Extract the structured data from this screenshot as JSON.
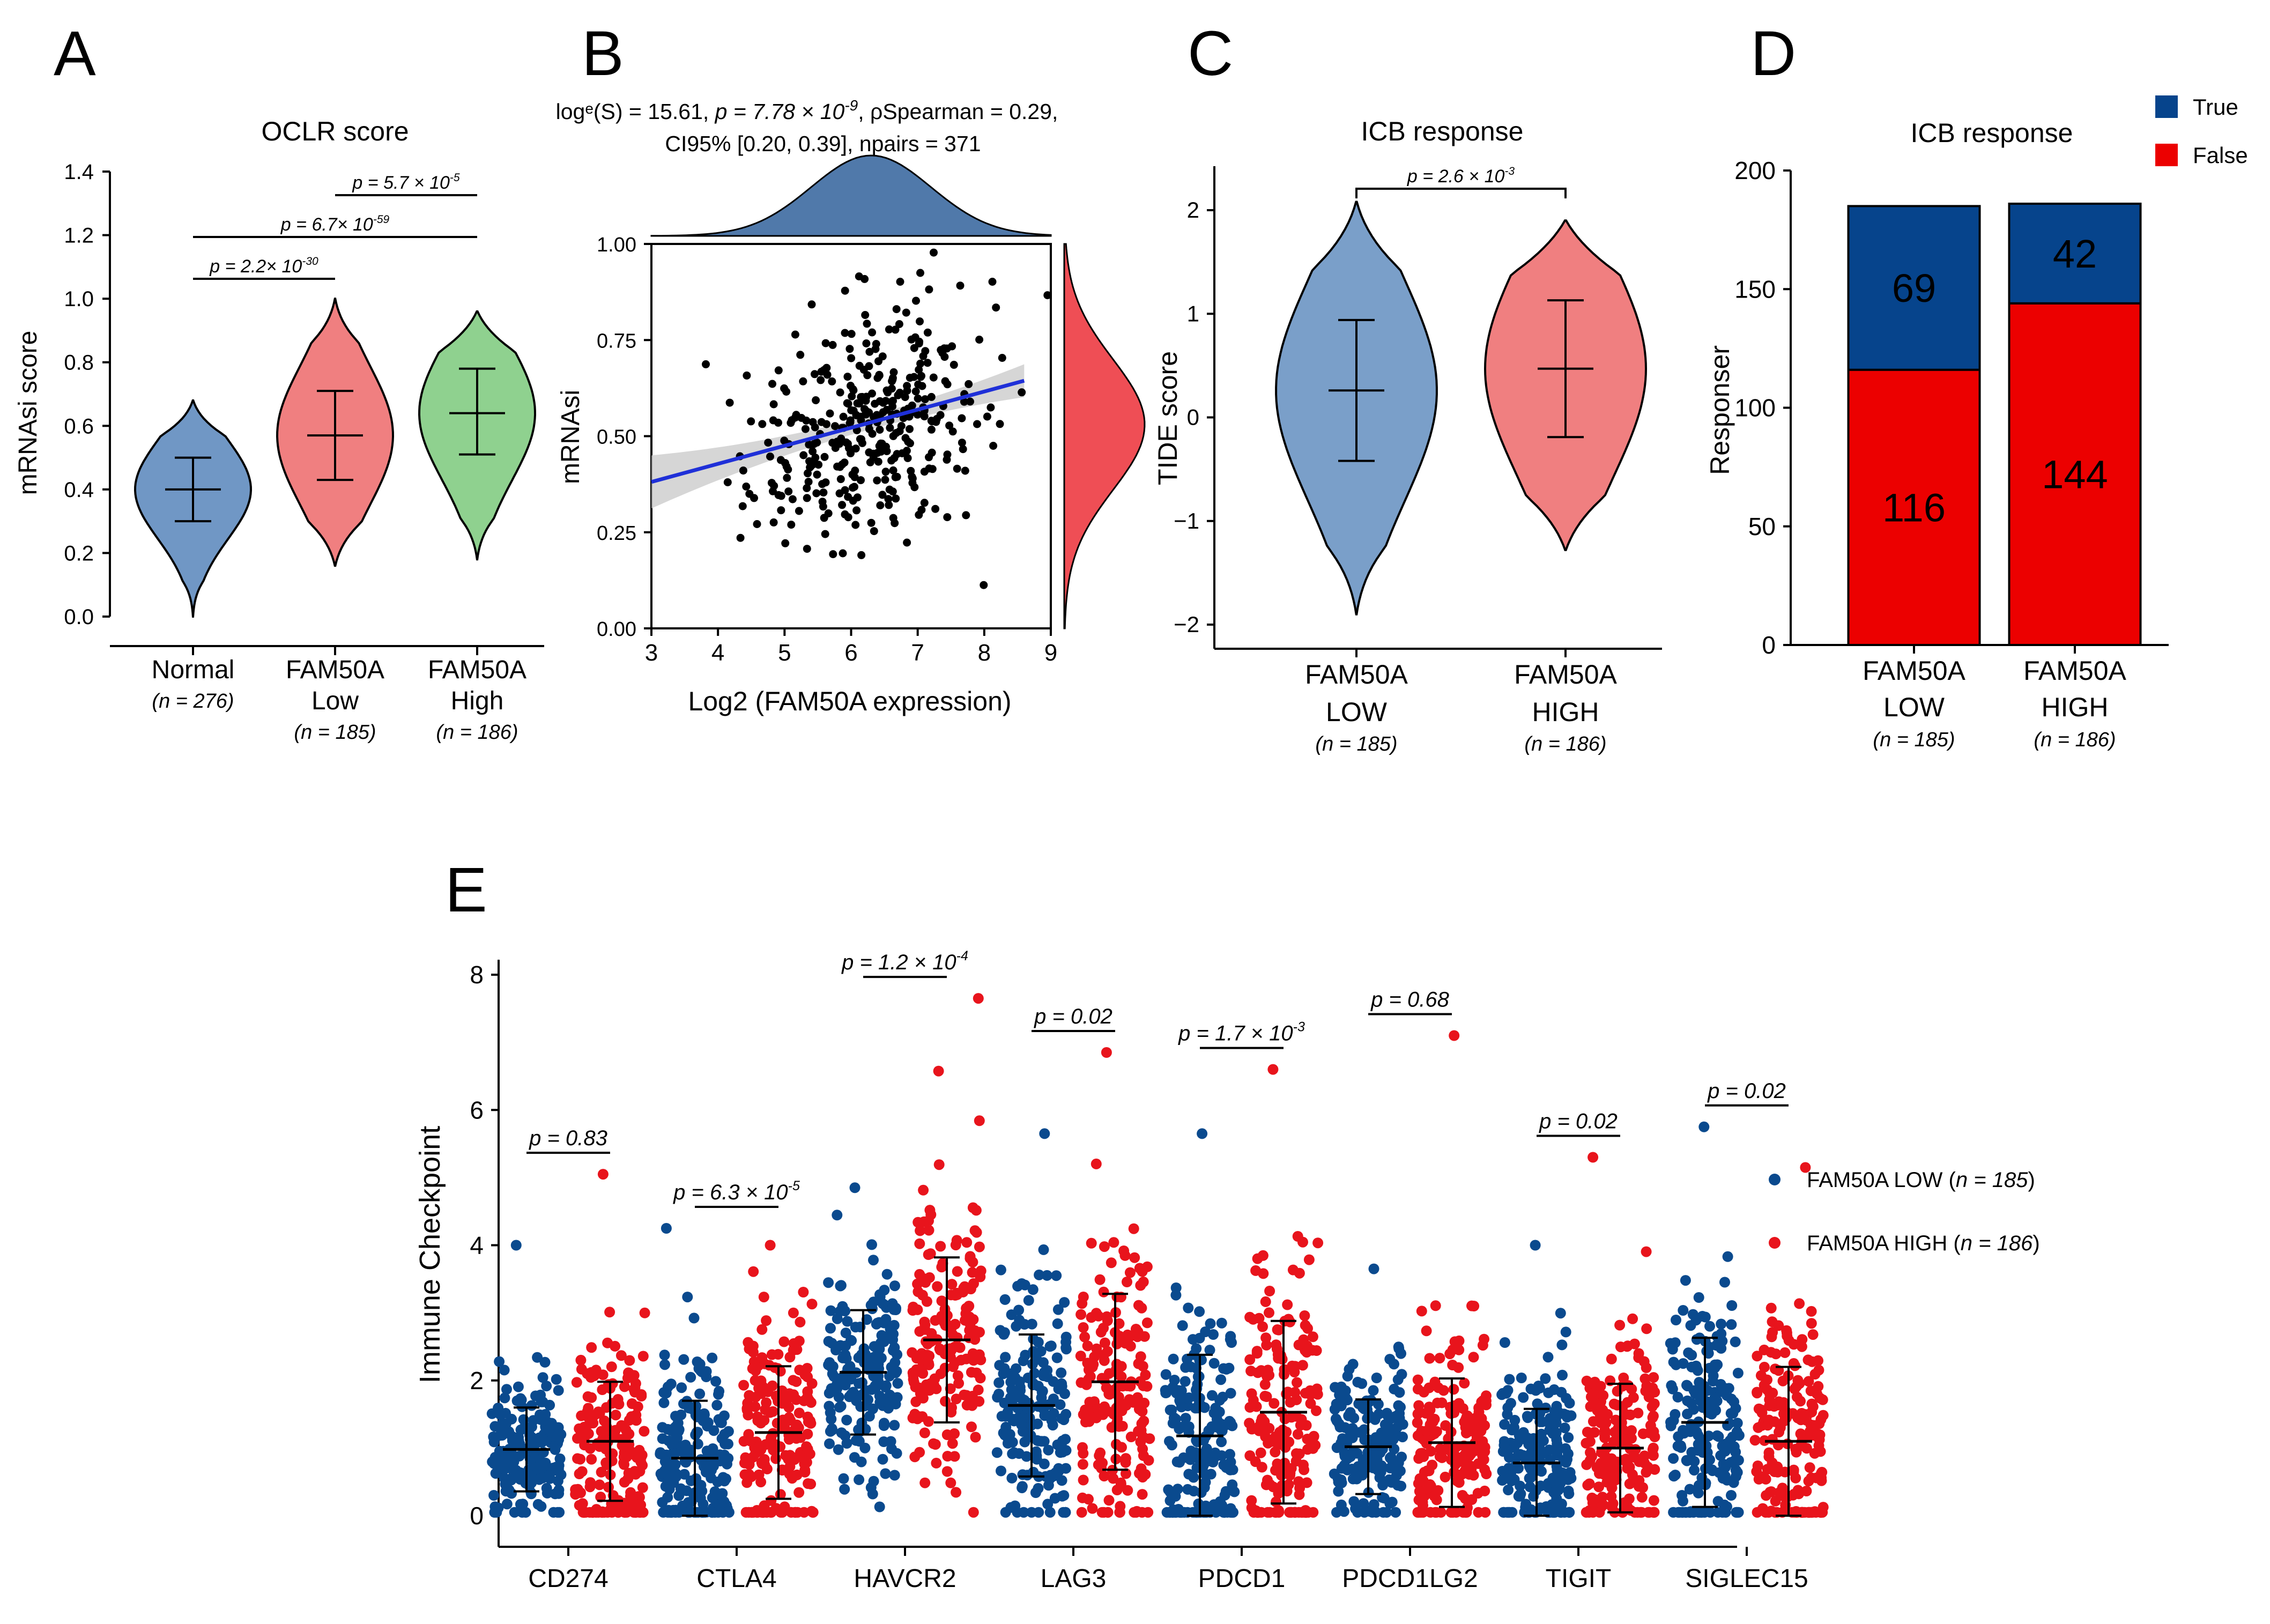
{
  "colors": {
    "normal": "#7097c5",
    "low_violin": "#7a9fc9",
    "high_violin": "#f07f80",
    "normal_green": "#8fd18f",
    "bar_true": "#06448c",
    "bar_false": "#ec0000",
    "scatter_point": "#000000",
    "fit_line": "#1f30d8",
    "band": "#c8c8c8",
    "density_top": "#5079aa",
    "density_right": "#ef4e55",
    "dot_low": "#0a4a8e",
    "dot_high": "#e8141c"
  },
  "chart_data": [
    {
      "panel": "A",
      "type": "violin",
      "title": "OCLR score",
      "ylabel": "mRNAsi score",
      "ylim": [
        0,
        1.4
      ],
      "yticks": [
        "0.0",
        "0.2",
        "0.4",
        "0.6",
        "0.8",
        "1.0",
        "1.2",
        "1.4"
      ],
      "groups": [
        {
          "label_lines": [
            "Normal"
          ],
          "n": "(n = 276)",
          "median": 0.4,
          "q1": 0.3,
          "q3": 0.5,
          "min": 0.0,
          "max": 0.68
        },
        {
          "label_lines": [
            "FAM50A",
            "Low"
          ],
          "n": "(n = 185)",
          "median": 0.57,
          "q1": 0.43,
          "q3": 0.71,
          "min": 0.16,
          "max": 1.0
        },
        {
          "label_lines": [
            "FAM50A",
            "High"
          ],
          "n": "(n = 186)",
          "median": 0.64,
          "q1": 0.51,
          "q3": 0.78,
          "min": 0.18,
          "max": 0.96
        }
      ],
      "comparisons": [
        {
          "label": "p = 2.2× 10",
          "exp": "-30"
        },
        {
          "label": "p = 6.7× 10",
          "exp": "-59"
        },
        {
          "label": "p = 5.7 × 10",
          "exp": "-5"
        }
      ]
    },
    {
      "panel": "B",
      "type": "scatter",
      "subtitle_line1_a": "log",
      "subtitle_line1_b": "e",
      "subtitle_line1_c": "(S) = 15.61, ",
      "subtitle_line1_p": "p = 7.78 × 10",
      "subtitle_line1_exp": "-9",
      "subtitle_line1_rho": ", ρSpearman = 0.29,",
      "subtitle_line2": "CI95% [0.20, 0.39], npairs = 371",
      "xlabel": "Log2 (FAM50A expression)",
      "ylabel": "mRNAsi",
      "xlim": [
        3,
        9
      ],
      "ylim": [
        0,
        1
      ],
      "xticks": [
        "3",
        "4",
        "5",
        "6",
        "7",
        "8",
        "9"
      ],
      "yticks": [
        "0.00",
        "0.25",
        "0.50",
        "0.75",
        "1.00"
      ],
      "fit": {
        "intercept": 0.24,
        "slope": 0.047
      },
      "x_mean": 6.3,
      "x_sd": 0.9,
      "y_mean": 0.53,
      "y_sd": 0.17,
      "n_points": 371
    },
    {
      "panel": "C",
      "type": "violin",
      "title": "ICB response",
      "ylabel": "TIDE score",
      "ylim": [
        -2,
        2
      ],
      "yticks": [
        "−2",
        "−1",
        "0",
        "1",
        "2"
      ],
      "groups": [
        {
          "label_lines": [
            "FAM50A",
            "LOW"
          ],
          "n": "(n = 185)",
          "median": 0.26,
          "q1": -0.42,
          "q3": 0.94,
          "min": -1.9,
          "max": 2.08
        },
        {
          "label_lines": [
            "FAM50A",
            "HIGH"
          ],
          "n": "(n = 186)",
          "median": 0.47,
          "q1": -0.19,
          "q3": 1.13,
          "min": -1.28,
          "max": 1.9
        }
      ],
      "comparison": {
        "label": "p = 2.6 × 10",
        "exp": "-3"
      }
    },
    {
      "panel": "D",
      "type": "bar",
      "stacked": true,
      "title": "ICB response",
      "ylabel": "Responser",
      "ylim": [
        0,
        200
      ],
      "yticks": [
        "0",
        "50",
        "100",
        "150",
        "200"
      ],
      "categories": [
        [
          "FAM50A",
          "LOW"
        ],
        [
          "FAM50A",
          "HIGH"
        ]
      ],
      "n_labels": [
        "(n = 185)",
        "(n = 186)"
      ],
      "series": [
        {
          "name": "False",
          "values": [
            116,
            144
          ]
        },
        {
          "name": "True",
          "values": [
            69,
            42
          ]
        }
      ],
      "legend": [
        "True",
        "False"
      ]
    },
    {
      "panel": "E",
      "type": "scatter",
      "ylabel": "Immune Checkpoint",
      "ylim": [
        0,
        8
      ],
      "yticks": [
        "0",
        "2",
        "4",
        "6",
        "8"
      ],
      "genes": [
        {
          "name": "CD274",
          "p": "p = 0.83",
          "exp": "",
          "low": {
            "mean": 0.98,
            "sd": 0.62,
            "max": 4.0
          },
          "high": {
            "mean": 1.1,
            "sd": 0.88,
            "max": 5.05
          }
        },
        {
          "name": "CTLA4",
          "p": "p = 6.3 × 10",
          "exp": "-5",
          "low": {
            "mean": 0.85,
            "sd": 0.85,
            "max": 4.25
          },
          "high": {
            "mean": 1.23,
            "sd": 0.98,
            "max": 4.0
          }
        },
        {
          "name": "HAVCR2",
          "p": "p = 1.2 × 10",
          "exp": "-4",
          "low": {
            "mean": 2.12,
            "sd": 0.92,
            "max": 4.85
          },
          "high": {
            "mean": 2.6,
            "sd": 1.22,
            "max": 7.65
          }
        },
        {
          "name": "LAG3",
          "p": "p = 0.02",
          "exp": "",
          "low": {
            "mean": 1.63,
            "sd": 1.05,
            "max": 5.65
          },
          "high": {
            "mean": 1.98,
            "sd": 1.3,
            "max": 6.85
          }
        },
        {
          "name": "PDCD1",
          "p": "p = 1.7 × 10",
          "exp": "-3",
          "low": {
            "mean": 1.18,
            "sd": 1.2,
            "max": 5.65
          },
          "high": {
            "mean": 1.53,
            "sd": 1.35,
            "max": 6.6
          }
        },
        {
          "name": "PDCD1LG2",
          "p": "p = 0.68",
          "exp": "",
          "low": {
            "mean": 1.02,
            "sd": 0.7,
            "max": 3.65
          },
          "high": {
            "mean": 1.08,
            "sd": 0.95,
            "max": 7.1
          }
        },
        {
          "name": "TIGIT",
          "p": "p = 0.02",
          "exp": "",
          "low": {
            "mean": 0.78,
            "sd": 0.8,
            "max": 4.0
          },
          "high": {
            "mean": 1.0,
            "sd": 0.95,
            "max": 5.3
          }
        },
        {
          "name": "SIGLEC15",
          "p": "p = 0.02",
          "exp": "",
          "low": {
            "mean": 1.38,
            "sd": 1.25,
            "max": 5.75
          },
          "high": {
            "mean": 1.1,
            "sd": 1.1,
            "max": 5.15
          }
        }
      ],
      "legend": [
        {
          "pre": "FAM50A LOW (",
          "n": "n = 185",
          "post": ")"
        },
        {
          "pre": "FAM50A HIGH (",
          "n": "n = 186",
          "post": ")"
        }
      ]
    }
  ],
  "panel_labels": [
    "A",
    "B",
    "C",
    "D",
    "E"
  ]
}
